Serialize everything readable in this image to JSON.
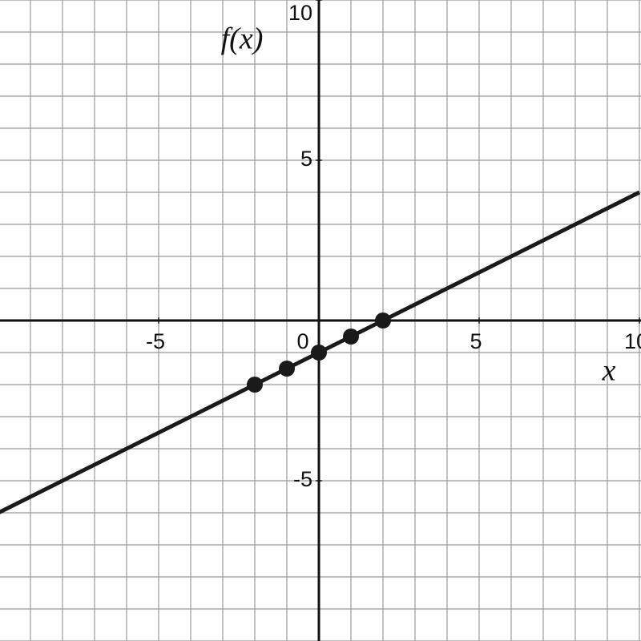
{
  "chart_data": {
    "type": "line",
    "x_label": "x",
    "y_label": "f(x)",
    "xlim": [
      -10,
      10
    ],
    "ylim": [
      -10,
      10
    ],
    "xticks": [
      -5,
      0,
      5,
      10
    ],
    "yticks": [
      -5,
      5,
      10
    ],
    "grid": true,
    "grid_step": 1,
    "series": [
      {
        "x": [
          -10,
          10
        ],
        "values": [
          -6,
          4
        ],
        "color": "#1a1a1a"
      }
    ],
    "points": {
      "x": [
        -2,
        -1,
        0,
        1,
        2
      ],
      "values": [
        -2,
        -1.5,
        -1,
        -0.5,
        0
      ],
      "color": "#1a1a1a"
    }
  }
}
